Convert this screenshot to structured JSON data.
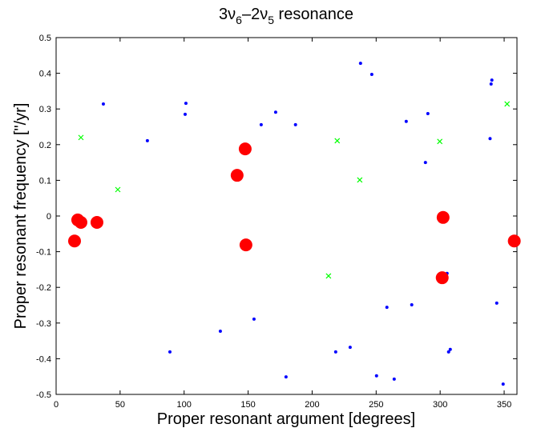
{
  "chart_data": {
    "type": "scatter",
    "title": [
      "3ν",
      "6",
      "–2ν",
      "5",
      " resonance"
    ],
    "xlabel": "Proper resonant argument [degrees]",
    "ylabel": "Proper resonant frequency [\"/yr]",
    "xlim": [
      0,
      360
    ],
    "ylim": [
      -0.5,
      0.5
    ],
    "xticks": [
      0,
      50,
      100,
      150,
      200,
      250,
      300,
      350
    ],
    "yticks": [
      -0.5,
      -0.4,
      -0.3,
      -0.2,
      -0.1,
      0,
      0.1,
      0.2,
      0.3,
      0.4,
      0.5
    ],
    "series": [
      {
        "color": "#0000ff",
        "marker": "dot",
        "x": [
          36.9,
          71.3,
          101.4,
          100.8,
          160.2,
          171.5,
          187,
          237.8,
          246.6,
          273.5,
          290.4,
          288.5,
          340.4,
          339.8,
          339,
          128.3,
          154.6,
          88.9,
          179.6,
          218.4,
          229.7,
          250.3,
          264.1,
          258.4,
          277.8,
          305.4,
          306.6,
          307.9,
          344.2,
          349.2
        ],
        "values": [
          0.314,
          0.211,
          0.316,
          0.285,
          0.256,
          0.291,
          0.256,
          0.428,
          0.397,
          0.265,
          0.287,
          0.15,
          0.381,
          0.37,
          0.217,
          -0.323,
          -0.289,
          -0.381,
          -0.451,
          -0.381,
          -0.368,
          -0.448,
          -0.457,
          -0.256,
          -0.249,
          -0.161,
          -0.381,
          -0.374,
          -0.244,
          -0.471
        ]
      },
      {
        "color": "#00ff00",
        "marker": "x",
        "x": [
          19.4,
          48.2,
          219.6,
          237.2,
          299.7,
          352.3,
          212.8
        ],
        "values": [
          0.22,
          0.074,
          0.211,
          0.101,
          0.209,
          0.314,
          -0.168
        ]
      },
      {
        "color": "#ff0000",
        "marker": "circle",
        "x": [
          14.4,
          16.9,
          19.4,
          31.9,
          141.4,
          147.7,
          148.3,
          302.3,
          301.6,
          357.9
        ],
        "values": [
          -0.07,
          -0.011,
          -0.018,
          -0.018,
          0.114,
          0.188,
          -0.081,
          -0.004,
          -0.173,
          -0.07
        ]
      }
    ]
  }
}
